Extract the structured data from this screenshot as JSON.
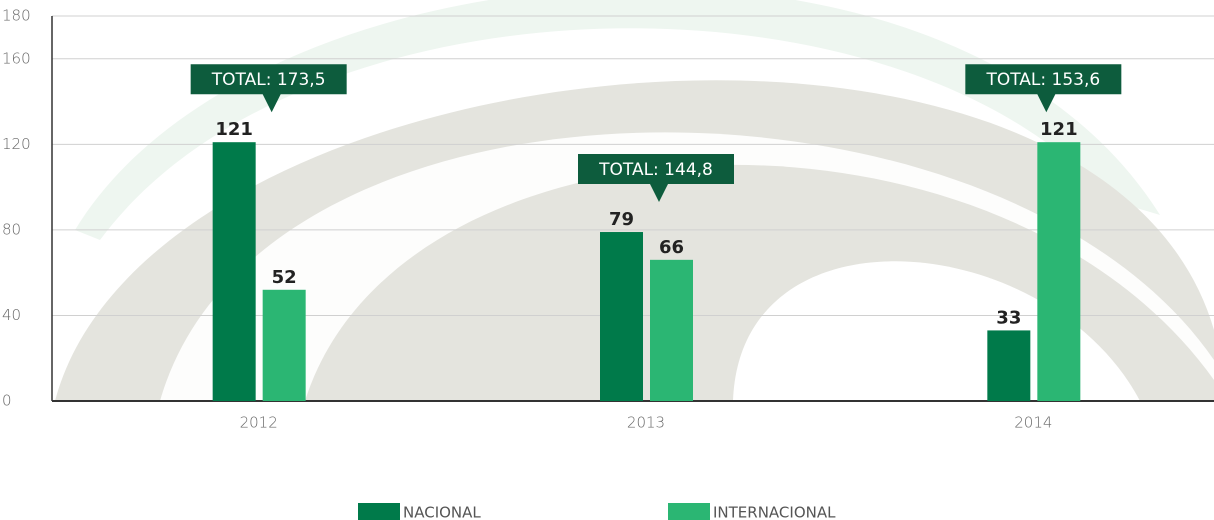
{
  "chart_data": {
    "type": "bar",
    "categories": [
      "2012",
      "2013",
      "2014"
    ],
    "series": [
      {
        "name": "NACIONAL",
        "color": "#007a4a",
        "values": [
          121,
          79,
          33
        ]
      },
      {
        "name": "INTERNACIONAL",
        "color": "#2bb673",
        "values": [
          52,
          66,
          121
        ]
      }
    ],
    "annotations": [
      "TOTAL: 173,5",
      "TOTAL: 144,8",
      "TOTAL: 153,6"
    ],
    "annotation_color": "#0d5c3d",
    "ylim": [
      0,
      180
    ],
    "yticks": [
      0,
      40,
      80,
      120,
      160,
      180
    ],
    "grid": true
  }
}
